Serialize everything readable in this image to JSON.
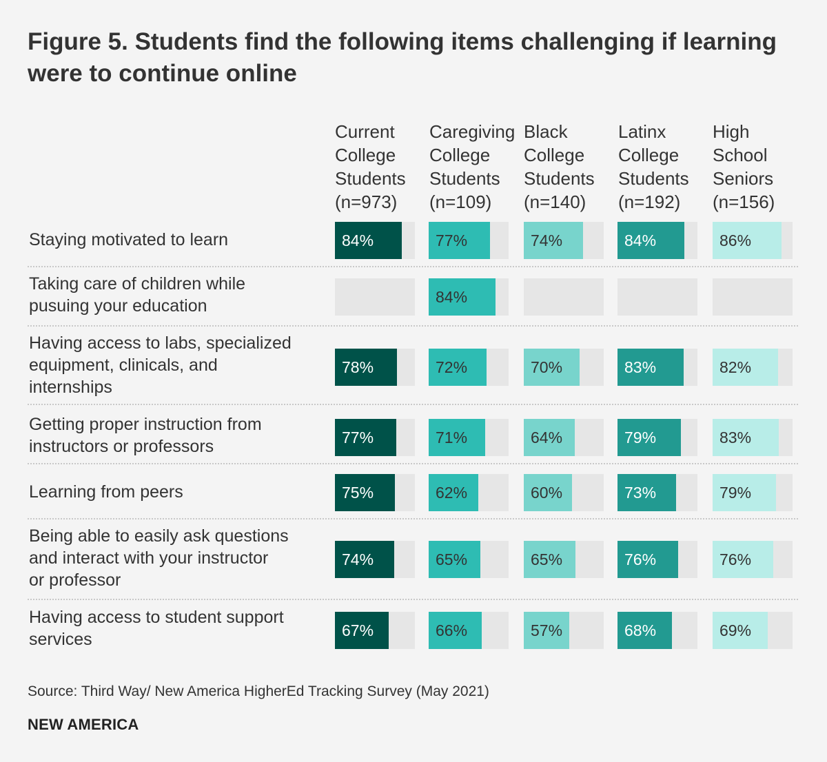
{
  "title": "Figure 5. Students find the following items challenging if learning were to continue online",
  "source": "Source: Third Way/ New America HigherEd Tracking Survey (May 2021)",
  "brand": "NEW AMERICA",
  "colors": {
    "current_college": "#005249",
    "caregiving_college": "#2ebcb3",
    "black_college": "#78d4cc",
    "latinx_college": "#229a91",
    "high_school": "#b8ede8",
    "empty_cell": "#e6e6e6",
    "label_light": "#ffffff",
    "label_dark": "#333333"
  },
  "chart_data": {
    "type": "bar",
    "orientation": "horizontal",
    "value_max": 100,
    "columns": [
      {
        "key": "current_college",
        "header_lines": [
          "Current",
          "College",
          "Students",
          "(n=973)"
        ]
      },
      {
        "key": "caregiving_college",
        "header_lines": [
          "Caregiving",
          "College",
          "Students",
          "(n=109)"
        ]
      },
      {
        "key": "black_college",
        "header_lines": [
          "Black",
          "College",
          "Students",
          "(n=140)"
        ]
      },
      {
        "key": "latinx_college",
        "header_lines": [
          "Latinx",
          "College",
          "Students",
          "(n=192)"
        ]
      },
      {
        "key": "high_school",
        "header_lines": [
          "High",
          "School",
          "Seniors",
          "(n=156)"
        ]
      }
    ],
    "rows": [
      {
        "label_lines": [
          "Staying motivated to learn"
        ],
        "values": [
          84,
          77,
          74,
          84,
          86
        ],
        "labels": [
          "84%",
          "77%",
          "74%",
          "84%",
          "86%"
        ]
      },
      {
        "label_lines": [
          "Taking care of children while",
          "pusuing your education"
        ],
        "values": [
          null,
          84,
          null,
          null,
          null
        ],
        "labels": [
          "",
          "84%",
          "",
          "",
          ""
        ]
      },
      {
        "label_lines": [
          "Having access to labs, specialized",
          "equipment, clinicals, and",
          "internships"
        ],
        "values": [
          78,
          72,
          70,
          83,
          82
        ],
        "labels": [
          "78%",
          "72%",
          "70%",
          "83%",
          "82%"
        ]
      },
      {
        "label_lines": [
          "Getting proper instruction from",
          "instructors or professors"
        ],
        "values": [
          77,
          71,
          64,
          79,
          83
        ],
        "labels": [
          "77%",
          "71%",
          "64%",
          "79%",
          "83%"
        ]
      },
      {
        "label_lines": [
          "Learning from peers"
        ],
        "values": [
          75,
          62,
          60,
          73,
          79
        ],
        "labels": [
          "75%",
          "62%",
          "60%",
          "73%",
          "79%"
        ]
      },
      {
        "label_lines": [
          "Being able to easily ask questions",
          "and interact with your instructor",
          "or professor"
        ],
        "values": [
          74,
          65,
          65,
          76,
          76
        ],
        "labels": [
          "74%",
          "65%",
          "65%",
          "76%",
          "76%"
        ]
      },
      {
        "label_lines": [
          "Having access to student support",
          "services"
        ],
        "values": [
          67,
          66,
          57,
          68,
          69
        ],
        "labels": [
          "67%",
          "66%",
          "57%",
          "68%",
          "69%"
        ]
      }
    ]
  }
}
